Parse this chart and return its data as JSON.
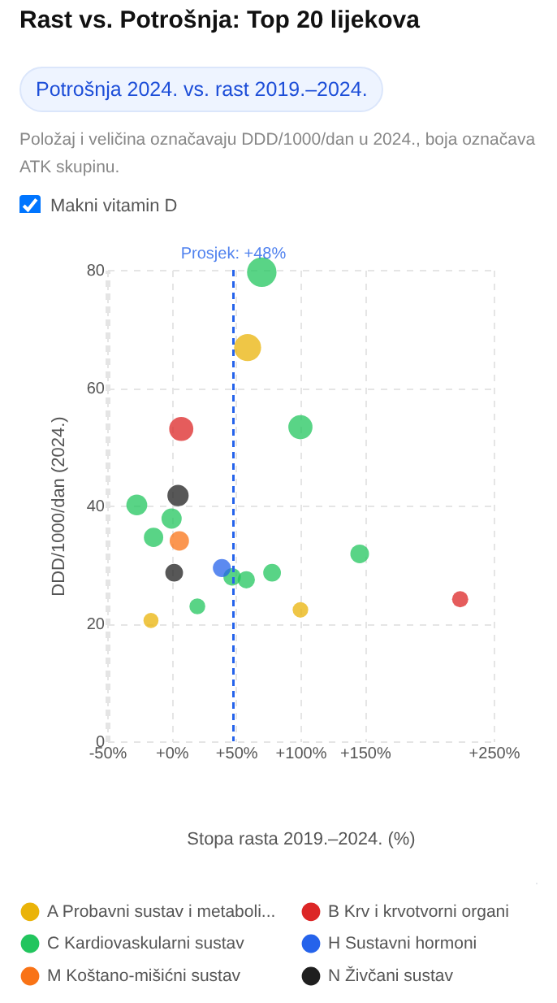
{
  "chart_data": {
    "type": "bubble",
    "title": "Rast vs. Potrošnja: Top 20 lijekova",
    "subtitle": "Potrošnja 2024. vs. rast 2019.–2024.",
    "annotations": [
      "Položaj i veličina označavaju DDD/1000/dan u 2024., boja označava ATK skupinu.",
      "Makni vitamin D"
    ],
    "xlabel": "Stopa rasta 2019.–2024. (%)",
    "ylabel": "DDD/1000/dan (2024.)",
    "xlim": [
      -50,
      250
    ],
    "xticks": [
      {
        "value": -50,
        "label": "-50%"
      },
      {
        "value": 0,
        "label": "+0%"
      },
      {
        "value": 50,
        "label": "+50%"
      },
      {
        "value": 100,
        "label": "+100%"
      },
      {
        "value": 150,
        "label": "+150%"
      },
      {
        "value": 250,
        "label": "+250%"
      }
    ],
    "ylim": [
      0,
      80
    ],
    "yticks": [
      0,
      20,
      40,
      60,
      80
    ],
    "grid": true,
    "legend": "bottom",
    "series": [
      {
        "name": "A Probavni sustav i metaboli...",
        "color": "#eab308",
        "x": [
          59,
          100,
          -16
        ],
        "values": [
          66.8,
          22.3,
          20.5
        ],
        "sizes": [
          0.84,
          0.28,
          0.26
        ]
      },
      {
        "name": "B Krv i krvotvorni organi",
        "color": "#dc2626",
        "x": [
          7.5,
          224
        ],
        "values": [
          53,
          24.1
        ],
        "sizes": [
          0.67,
          0.3
        ]
      },
      {
        "name": "C Kardiovaskularni sustav",
        "color": "#22c55e",
        "x": [
          70,
          100,
          -27,
          0,
          -14,
          47,
          58,
          78,
          146,
          20
        ],
        "values": [
          79.6,
          53.3,
          40.1,
          37.8,
          34.6,
          27.9,
          27.4,
          28.6,
          31.8,
          22.9
        ],
        "sizes": [
          1,
          0.67,
          0.5,
          0.47,
          0.43,
          0.35,
          0.34,
          0.36,
          0.4,
          0.29
        ]
      },
      {
        "name": "H Sustavni hormoni",
        "color": "#2563eb",
        "x": [
          39
        ],
        "values": [
          29.4
        ],
        "sizes": [
          0.37
        ]
      },
      {
        "name": "M Koštano-mišićni sustav",
        "color": "#f97316",
        "x": [
          6
        ],
        "values": [
          34
        ],
        "sizes": [
          0.43
        ]
      },
      {
        "name": "N Živčani sustav",
        "color": "#1f1f1f",
        "x": [
          5,
          2
        ],
        "values": [
          41.7,
          28.6
        ],
        "sizes": [
          0.52,
          0.36
        ]
      }
    ],
    "ref_lines": [
      {
        "axis": "x",
        "value": 48,
        "label": "Prosjek: +48%",
        "color": "#2563eb",
        "line_style": "dashed"
      }
    ]
  }
}
